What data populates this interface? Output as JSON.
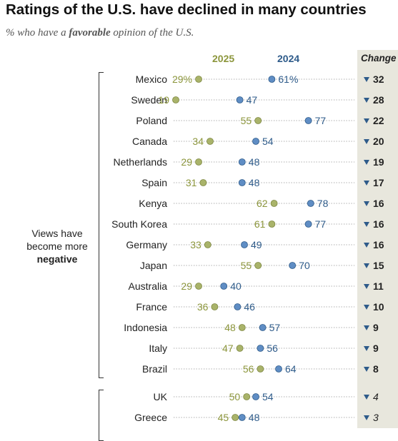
{
  "title": "Ratings of the U.S. have declined in many countries",
  "subtitle": {
    "prefix": "% who have a ",
    "emphasis": "favorable",
    "suffix": " opinion of the U.S."
  },
  "legend": {
    "year_2025": "2025",
    "year_2024": "2024"
  },
  "change_header": "Change",
  "group_label": {
    "line1": "Views have",
    "line2": "become more",
    "line3": "negative"
  },
  "colors": {
    "y2025": "#a9b36a",
    "y2024": "#5f8dc4",
    "change_triangle": "#2e5b8a",
    "change_panel": "#e8e7dd"
  },
  "chart_data": {
    "type": "dot",
    "value_unit": "percent favorable",
    "series": [
      {
        "name": "2025"
      },
      {
        "name": "2024"
      }
    ],
    "rows": [
      {
        "country": "Mexico",
        "v2025": 29,
        "v2024": 61,
        "change": 32,
        "label2025": "29%",
        "label2024": "61%",
        "group": "negative"
      },
      {
        "country": "Sweden",
        "v2025": 19,
        "v2024": 47,
        "change": 28,
        "group": "negative"
      },
      {
        "country": "Poland",
        "v2025": 55,
        "v2024": 77,
        "change": 22,
        "group": "negative"
      },
      {
        "country": "Canada",
        "v2025": 34,
        "v2024": 54,
        "change": 20,
        "group": "negative"
      },
      {
        "country": "Netherlands",
        "v2025": 29,
        "v2024": 48,
        "change": 19,
        "group": "negative"
      },
      {
        "country": "Spain",
        "v2025": 31,
        "v2024": 48,
        "change": 17,
        "group": "negative"
      },
      {
        "country": "Kenya",
        "v2025": 62,
        "v2024": 78,
        "change": 16,
        "group": "negative"
      },
      {
        "country": "South Korea",
        "v2025": 61,
        "v2024": 77,
        "change": 16,
        "group": "negative"
      },
      {
        "country": "Germany",
        "v2025": 33,
        "v2024": 49,
        "change": 16,
        "group": "negative"
      },
      {
        "country": "Japan",
        "v2025": 55,
        "v2024": 70,
        "change": 15,
        "group": "negative"
      },
      {
        "country": "Australia",
        "v2025": 29,
        "v2024": 40,
        "change": 11,
        "group": "negative"
      },
      {
        "country": "France",
        "v2025": 36,
        "v2024": 46,
        "change": 10,
        "group": "negative"
      },
      {
        "country": "Indonesia",
        "v2025": 48,
        "v2024": 57,
        "change": 9,
        "group": "negative"
      },
      {
        "country": "Italy",
        "v2025": 47,
        "v2024": 56,
        "change": 9,
        "group": "negative"
      },
      {
        "country": "Brazil",
        "v2025": 56,
        "v2024": 64,
        "change": 8,
        "group": "negative"
      },
      {
        "country": "UK",
        "v2025": 50,
        "v2024": 54,
        "change": 4,
        "group": "other"
      },
      {
        "country": "Greece",
        "v2025": 45,
        "v2024": 48,
        "change": 3,
        "group": "other"
      }
    ]
  }
}
